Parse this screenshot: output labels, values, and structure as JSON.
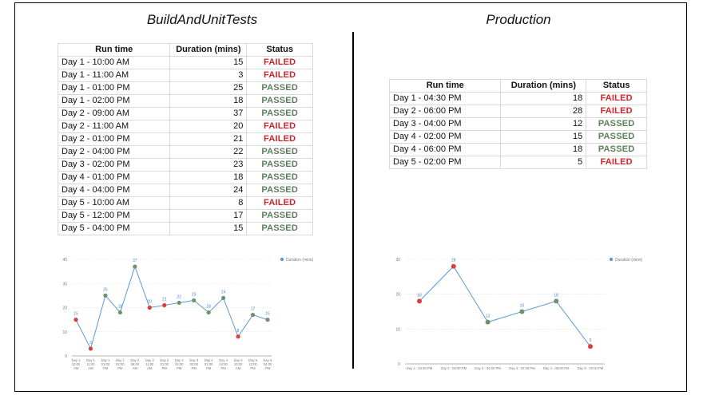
{
  "left": {
    "title": "BuildAndUnitTests",
    "columns": [
      "Run time",
      "Duration (mins)",
      "Status"
    ],
    "rows": [
      {
        "time": "Day 1 - 10:00 AM",
        "duration": "15",
        "status": "FAILED"
      },
      {
        "time": "Day 1 - 11:00 AM",
        "duration": "3",
        "status": "FAILED"
      },
      {
        "time": "Day 1 - 01:00 PM",
        "duration": "25",
        "status": "PASSED"
      },
      {
        "time": "Day 1 - 02:00 PM",
        "duration": "18",
        "status": "PASSED"
      },
      {
        "time": "Day 2 - 09:00 AM",
        "duration": "37",
        "status": "PASSED"
      },
      {
        "time": "Day 2 - 11:00 AM",
        "duration": "20",
        "status": "FAILED"
      },
      {
        "time": "Day 2 - 01:00 PM",
        "duration": "21",
        "status": "FAILED"
      },
      {
        "time": "Day 2 - 04:00 PM",
        "duration": "22",
        "status": "PASSED"
      },
      {
        "time": "Day 3 - 02:00 PM",
        "duration": "23",
        "status": "PASSED"
      },
      {
        "time": "Day 4 - 01:00 PM",
        "duration": "18",
        "status": "PASSED"
      },
      {
        "time": "Day 4 - 04:00 PM",
        "duration": "24",
        "status": "PASSED"
      },
      {
        "time": "Day 5 - 10:00 AM",
        "duration": "8",
        "status": "FAILED"
      },
      {
        "time": "Day 5 - 12:00 PM",
        "duration": "17",
        "status": "PASSED"
      },
      {
        "time": "Day 5 - 04:00 PM",
        "duration": "15",
        "status": "PASSED"
      }
    ]
  },
  "right": {
    "title": "Production",
    "columns": [
      "Run time",
      "Duration (mins)",
      "Status"
    ],
    "rows": [
      {
        "time": "Day 1 - 04:30 PM",
        "duration": "18",
        "status": "FAILED"
      },
      {
        "time": "Day 2 - 06:00 PM",
        "duration": "28",
        "status": "FAILED"
      },
      {
        "time": "Day 3 - 04:00 PM",
        "duration": "12",
        "status": "PASSED"
      },
      {
        "time": "Day 4 - 02:00 PM",
        "duration": "15",
        "status": "PASSED"
      },
      {
        "time": "Day 4 - 06:00 PM",
        "duration": "18",
        "status": "PASSED"
      },
      {
        "time": "Day 5 - 02:00 PM",
        "duration": "5",
        "status": "FAILED"
      }
    ]
  },
  "colors": {
    "failed_text": "#d0242b",
    "passed_text": "#5b7f5b",
    "line": "#5b9bd5",
    "failed_point": "#e03c3c",
    "passed_point": "#6f8f6f",
    "gridline": "#dddddd",
    "data_label": "#4a86c8"
  },
  "chart_data": [
    {
      "type": "line",
      "categories": [
        "Day 1 - 10:00 AM",
        "Day 1 - 11:00 AM",
        "Day 1 - 01:00 PM",
        "Day 1 - 02:00 PM",
        "Day 2 - 09:00 AM",
        "Day 2 - 11:00 AM",
        "Day 2 - 01:00 PM",
        "Day 2 - 04:00 PM",
        "Day 3 - 02:00 PM",
        "Day 4 - 01:00 PM",
        "Day 4 - 04:00 PM",
        "Day 5 - 10:00 AM",
        "Day 5 - 12:00 PM",
        "Day 5 - 04:00 PM"
      ],
      "series": [
        {
          "name": "Duration (mins)",
          "values": [
            15,
            3,
            25,
            18,
            37,
            20,
            21,
            22,
            23,
            18,
            24,
            8,
            17,
            15
          ],
          "status": [
            "FAILED",
            "FAILED",
            "PASSED",
            "PASSED",
            "PASSED",
            "FAILED",
            "FAILED",
            "PASSED",
            "PASSED",
            "PASSED",
            "PASSED",
            "FAILED",
            "PASSED",
            "PASSED"
          ]
        }
      ],
      "yticks": [
        0,
        10,
        20,
        30,
        40
      ],
      "ylim": [
        0,
        40
      ],
      "grid": true,
      "legend": "top-right"
    },
    {
      "type": "line",
      "categories": [
        "Day 1 - 04:30 PM",
        "Day 2 - 06:00 PM",
        "Day 3 - 04:00 PM",
        "Day 4 - 02:00 PM",
        "Day 4 - 06:00 PM",
        "Day 5 - 02:00 PM"
      ],
      "series": [
        {
          "name": "Duration (mins)",
          "values": [
            18,
            28,
            12,
            15,
            18,
            5
          ],
          "status": [
            "FAILED",
            "FAILED",
            "PASSED",
            "PASSED",
            "PASSED",
            "FAILED"
          ]
        }
      ],
      "yticks": [
        0,
        10,
        20,
        30
      ],
      "ylim": [
        0,
        30
      ],
      "grid": true,
      "legend": "top-right"
    }
  ]
}
